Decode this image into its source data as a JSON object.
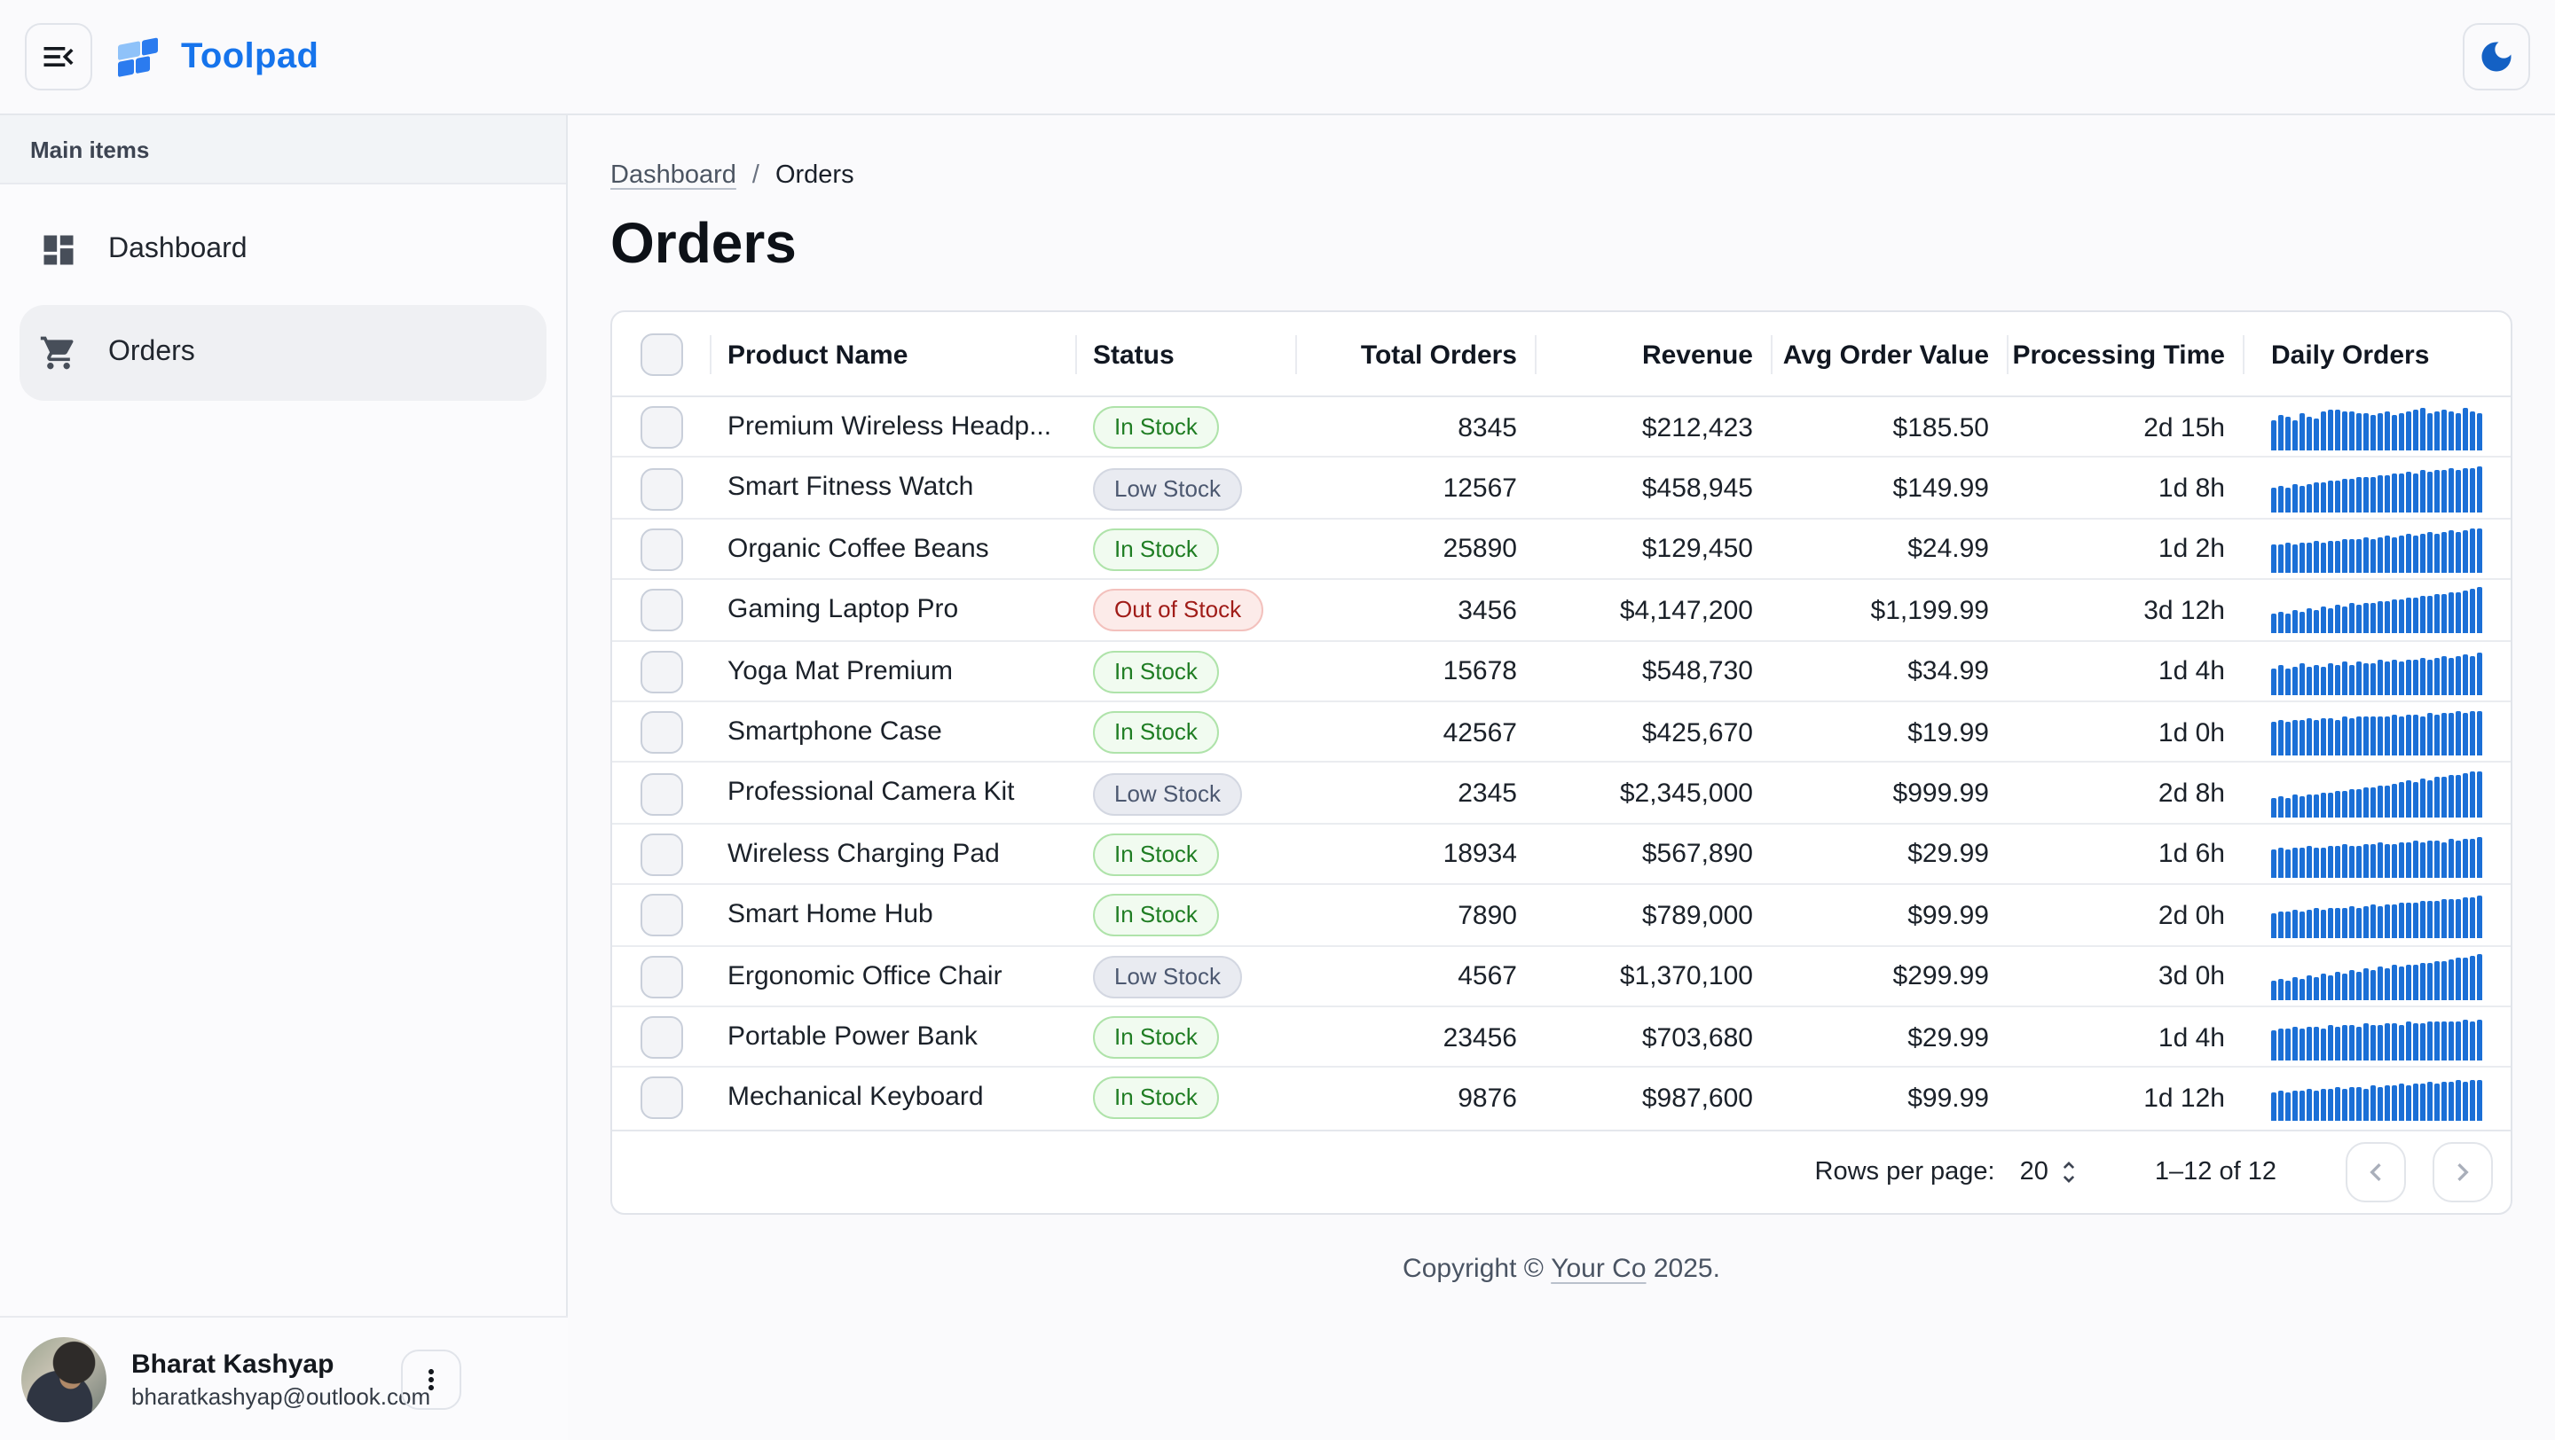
{
  "appbar": {
    "brand": "Toolpad"
  },
  "theme": {
    "brand_blue": "#1674EC",
    "sparkline_blue": "#1B6FD6",
    "moon_blue": "#1461C4",
    "badge_success_text": "#1F7D23",
    "badge_neutral_text": "#4C5870",
    "badge_danger_text": "#A01C18"
  },
  "sidebar": {
    "section_label": "Main items",
    "items": [
      {
        "label": "Dashboard",
        "icon": "dashboard-icon",
        "selected": false
      },
      {
        "label": "Orders",
        "icon": "shopping-cart-icon",
        "selected": true
      }
    ],
    "user": {
      "name": "Bharat Kashyap",
      "email": "bharatkashyap@outlook.com"
    }
  },
  "breadcrumb": {
    "parent": "Dashboard",
    "separator": "/",
    "current": "Orders"
  },
  "page": {
    "title": "Orders"
  },
  "table": {
    "columns": [
      "Product Name",
      "Status",
      "Total Orders",
      "Revenue",
      "Avg Order Value",
      "Processing Time",
      "Daily Orders"
    ],
    "rows": [
      {
        "product": "Premium Wireless Headp...",
        "status": "In Stock",
        "status_variant": "success",
        "total_orders": "8345",
        "revenue": "$212,423",
        "avg_order_value": "$185.50",
        "processing_time": "2d 15h",
        "daily_orders": [
          62,
          78,
          70,
          64,
          80,
          72,
          66,
          84,
          90,
          88,
          84,
          86,
          80,
          82,
          78,
          80,
          84,
          78,
          82,
          86,
          88,
          92,
          82,
          84,
          88,
          84,
          80,
          94,
          86,
          82
        ]
      },
      {
        "product": "Smart Fitness Watch",
        "status": "Low Stock",
        "status_variant": "neutral",
        "total_orders": "12567",
        "revenue": "$458,945",
        "avg_order_value": "$149.99",
        "processing_time": "1d 8h",
        "daily_orders": [
          48,
          52,
          50,
          56,
          54,
          58,
          62,
          60,
          66,
          64,
          70,
          68,
          72,
          74,
          72,
          78,
          76,
          82,
          80,
          84,
          82,
          88,
          86,
          90,
          88,
          92,
          90,
          94,
          96,
          100
        ]
      },
      {
        "product": "Organic Coffee Beans",
        "status": "In Stock",
        "status_variant": "success",
        "total_orders": "25890",
        "revenue": "$129,450",
        "avg_order_value": "$24.99",
        "processing_time": "1d 2h",
        "daily_orders": [
          60,
          58,
          62,
          60,
          64,
          62,
          66,
          64,
          68,
          66,
          70,
          72,
          70,
          74,
          72,
          76,
          78,
          76,
          80,
          82,
          80,
          84,
          86,
          84,
          88,
          90,
          88,
          92,
          96,
          94
        ]
      },
      {
        "product": "Gaming Laptop Pro",
        "status": "Out of Stock",
        "status_variant": "danger",
        "total_orders": "3456",
        "revenue": "$4,147,200",
        "avg_order_value": "$1,199.99",
        "processing_time": "3d 12h",
        "daily_orders": [
          38,
          42,
          40,
          46,
          44,
          50,
          48,
          54,
          52,
          58,
          56,
          62,
          60,
          66,
          64,
          70,
          68,
          74,
          72,
          78,
          76,
          82,
          80,
          86,
          84,
          90,
          88,
          94,
          98,
          100
        ]
      },
      {
        "product": "Yoga Mat Premium",
        "status": "In Stock",
        "status_variant": "success",
        "total_orders": "15678",
        "revenue": "$548,730",
        "avg_order_value": "$34.99",
        "processing_time": "1d 4h",
        "daily_orders": [
          55,
          60,
          52,
          58,
          64,
          56,
          62,
          58,
          66,
          60,
          68,
          62,
          70,
          64,
          66,
          72,
          68,
          74,
          70,
          76,
          72,
          78,
          74,
          80,
          82,
          78,
          84,
          88,
          84,
          90
        ]
      },
      {
        "product": "Smartphone Case",
        "status": "In Stock",
        "status_variant": "success",
        "total_orders": "42567",
        "revenue": "$425,670",
        "avg_order_value": "$19.99",
        "processing_time": "1d 0h",
        "daily_orders": [
          70,
          74,
          72,
          76,
          74,
          78,
          76,
          80,
          78,
          76,
          82,
          80,
          84,
          82,
          86,
          84,
          82,
          88,
          86,
          90,
          88,
          86,
          92,
          90,
          94,
          92,
          96,
          94,
          98,
          96
        ]
      },
      {
        "product": "Professional Camera Kit",
        "status": "Low Stock",
        "status_variant": "neutral",
        "total_orders": "2345",
        "revenue": "$2,345,000",
        "avg_order_value": "$999.99",
        "processing_time": "2d 8h",
        "daily_orders": [
          34,
          38,
          36,
          42,
          40,
          46,
          44,
          50,
          48,
          54,
          52,
          58,
          56,
          62,
          60,
          66,
          64,
          70,
          72,
          76,
          74,
          80,
          78,
          84,
          86,
          90,
          88,
          94,
          98,
          100
        ]
      },
      {
        "product": "Wireless Charging Pad",
        "status": "In Stock",
        "status_variant": "success",
        "total_orders": "18934",
        "revenue": "$567,890",
        "avg_order_value": "$29.99",
        "processing_time": "1d 6h",
        "daily_orders": [
          58,
          62,
          60,
          64,
          62,
          66,
          64,
          62,
          68,
          66,
          70,
          68,
          66,
          72,
          70,
          74,
          72,
          70,
          76,
          74,
          78,
          76,
          80,
          78,
          76,
          82,
          80,
          84,
          82,
          86
        ]
      },
      {
        "product": "Smart Home Hub",
        "status": "In Stock",
        "status_variant": "success",
        "total_orders": "7890",
        "revenue": "$789,000",
        "avg_order_value": "$99.99",
        "processing_time": "2d 0h",
        "daily_orders": [
          52,
          56,
          54,
          58,
          56,
          60,
          62,
          60,
          64,
          66,
          64,
          68,
          66,
          70,
          72,
          70,
          74,
          72,
          76,
          78,
          76,
          80,
          82,
          80,
          84,
          86,
          84,
          88,
          90,
          92
        ]
      },
      {
        "product": "Ergonomic Office Chair",
        "status": "Low Stock",
        "status_variant": "neutral",
        "total_orders": "4567",
        "revenue": "$1,370,100",
        "avg_order_value": "$299.99",
        "processing_time": "3d 0h",
        "daily_orders": [
          36,
          40,
          38,
          44,
          42,
          48,
          46,
          52,
          50,
          56,
          54,
          60,
          58,
          64,
          62,
          68,
          66,
          72,
          70,
          76,
          74,
          80,
          78,
          84,
          82,
          88,
          92,
          90,
          96,
          100
        ]
      },
      {
        "product": "Portable Power Bank",
        "status": "In Stock",
        "status_variant": "success",
        "total_orders": "23456",
        "revenue": "$703,680",
        "avg_order_value": "$29.99",
        "processing_time": "1d 4h",
        "daily_orders": [
          64,
          68,
          66,
          70,
          68,
          72,
          70,
          68,
          74,
          72,
          76,
          74,
          72,
          78,
          76,
          74,
          80,
          78,
          76,
          82,
          80,
          78,
          84,
          82,
          86,
          84,
          82,
          88,
          86,
          90
        ]
      },
      {
        "product": "Mechanical Keyboard",
        "status": "In Stock",
        "status_variant": "success",
        "total_orders": "9876",
        "revenue": "$987,600",
        "avg_order_value": "$99.99",
        "processing_time": "1d 12h",
        "daily_orders": [
          60,
          64,
          62,
          66,
          64,
          68,
          66,
          70,
          68,
          72,
          70,
          74,
          72,
          70,
          76,
          74,
          78,
          76,
          80,
          78,
          82,
          80,
          84,
          82,
          86,
          84,
          88,
          86,
          90,
          88
        ]
      }
    ]
  },
  "pagination": {
    "rows_per_page_label": "Rows per page:",
    "rows_per_page_value": "20",
    "range_label": "1–12 of 12"
  },
  "footer": {
    "prefix": "Copyright ©",
    "link_text": "Your Co",
    "suffix": "2025."
  }
}
